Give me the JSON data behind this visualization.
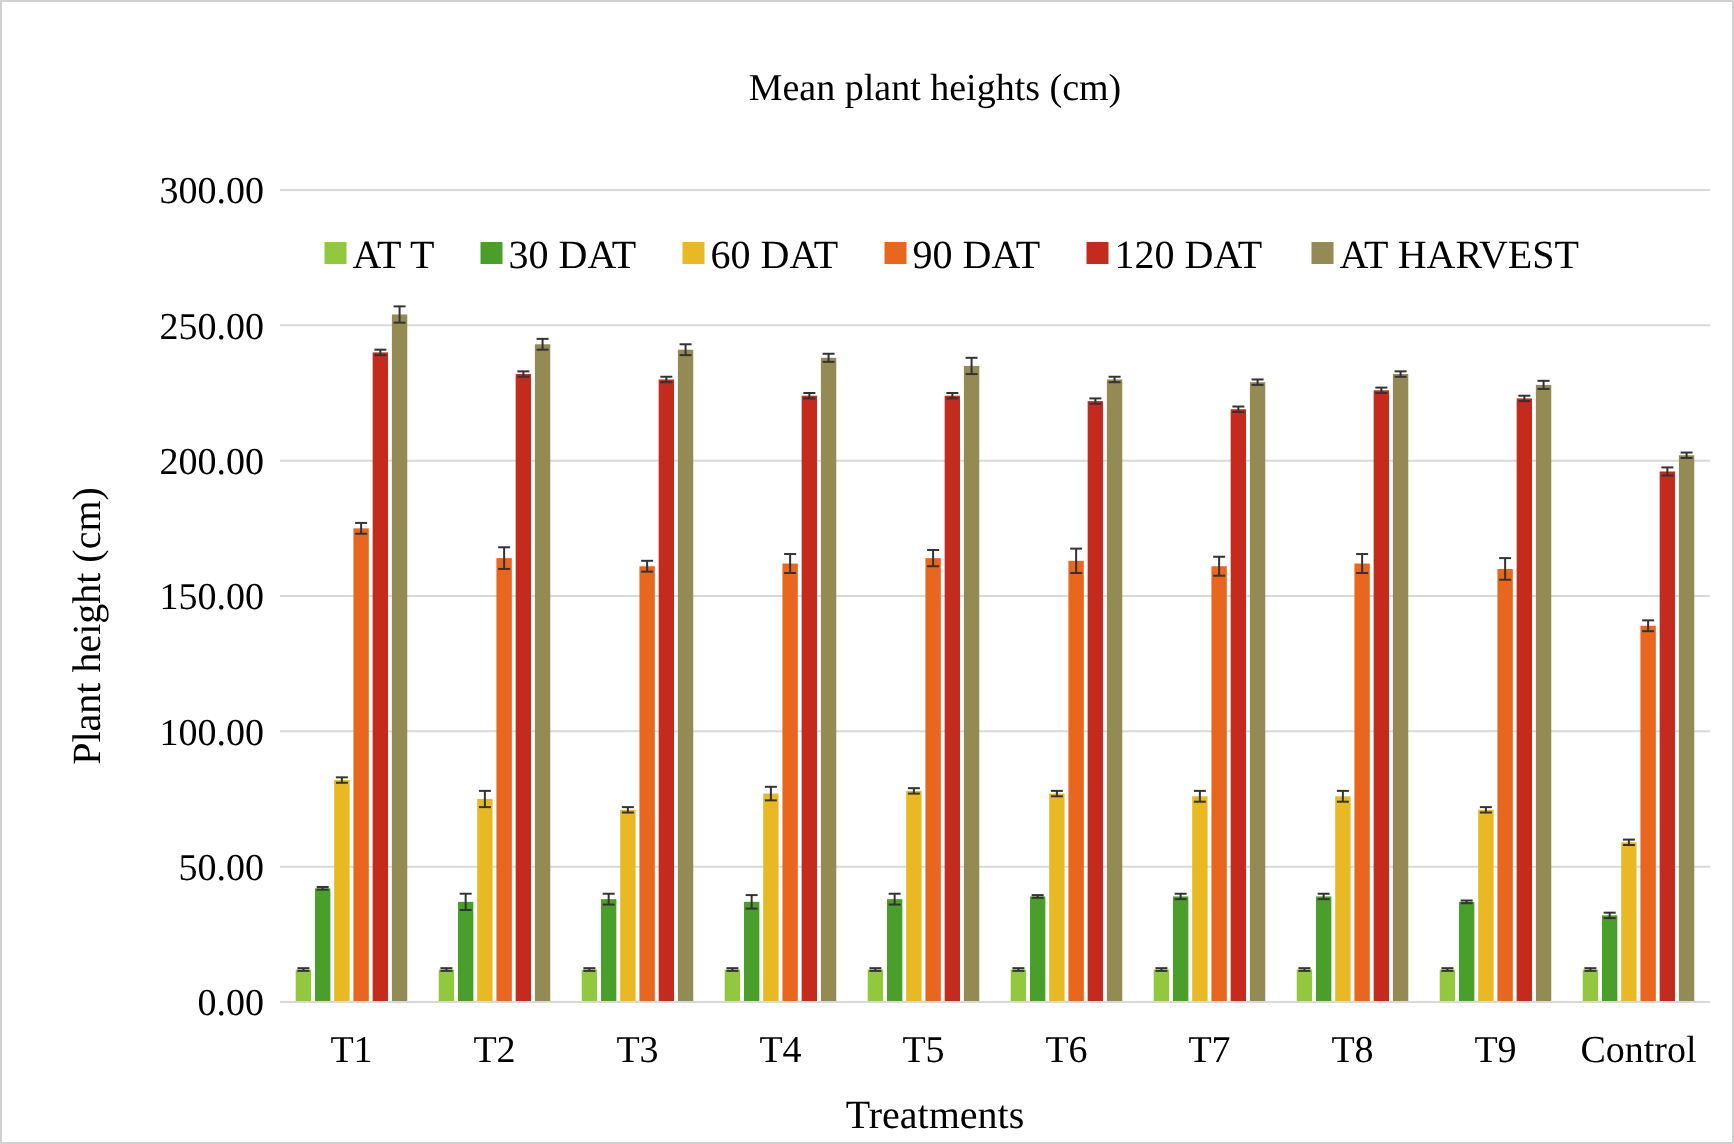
{
  "chart_data": {
    "type": "bar",
    "title": "Mean plant heights (cm)",
    "xlabel": "Treatments",
    "ylabel": "Plant height (cm)",
    "categories": [
      "T1",
      "T2",
      "T3",
      "T4",
      "T5",
      "T6",
      "T7",
      "T8",
      "T9",
      "Control"
    ],
    "series": [
      {
        "name": "AT T",
        "color": "#92c83e",
        "values": [
          12,
          12,
          12,
          12,
          12,
          12,
          12,
          12,
          12,
          12
        ],
        "errors": [
          0.5,
          0.5,
          0.5,
          0.5,
          0.5,
          0.5,
          0.5,
          0.5,
          0.5,
          0.5
        ]
      },
      {
        "name": "30 DAT",
        "color": "#4a9e2a",
        "values": [
          42,
          37,
          38,
          37,
          38,
          39,
          39,
          39,
          37,
          32
        ],
        "errors": [
          0.5,
          3,
          2,
          2.5,
          2,
          0.5,
          1,
          1,
          0.5,
          1
        ]
      },
      {
        "name": "60 DAT",
        "color": "#e8b923",
        "values": [
          82,
          75,
          71,
          77,
          78,
          77,
          76,
          76,
          71,
          59
        ],
        "errors": [
          1,
          3,
          1,
          2.5,
          1,
          1,
          2,
          2,
          1,
          1
        ]
      },
      {
        "name": "90 DAT",
        "color": "#e8661e",
        "values": [
          175,
          164,
          161,
          162,
          164,
          163,
          161,
          162,
          160,
          139
        ],
        "errors": [
          2,
          4,
          2,
          3.5,
          3,
          4.5,
          3.5,
          3.5,
          4,
          2
        ]
      },
      {
        "name": "120 DAT",
        "color": "#c42b1c",
        "values": [
          240,
          232,
          230,
          224,
          224,
          222,
          219,
          226,
          223,
          196
        ],
        "errors": [
          1,
          1,
          1,
          1,
          1,
          1,
          1,
          1,
          1,
          1.5
        ]
      },
      {
        "name": "AT HARVEST",
        "color": "#948a54",
        "values": [
          254,
          243,
          241,
          238,
          235,
          230,
          229,
          232,
          228,
          202
        ],
        "errors": [
          3,
          2,
          2,
          1.5,
          3,
          1,
          1,
          1,
          1.5,
          1
        ]
      }
    ],
    "ylim": [
      0,
      300
    ],
    "yticks": [
      {
        "value": 0,
        "label": "0.00"
      },
      {
        "value": 50,
        "label": "50.00"
      },
      {
        "value": 100,
        "label": "100.00"
      },
      {
        "value": 150,
        "label": "150.00"
      },
      {
        "value": 200,
        "label": "200.00"
      },
      {
        "value": 250,
        "label": "250.00"
      },
      {
        "value": 300,
        "label": "300.00"
      }
    ],
    "grid": "y",
    "legend": "top"
  }
}
